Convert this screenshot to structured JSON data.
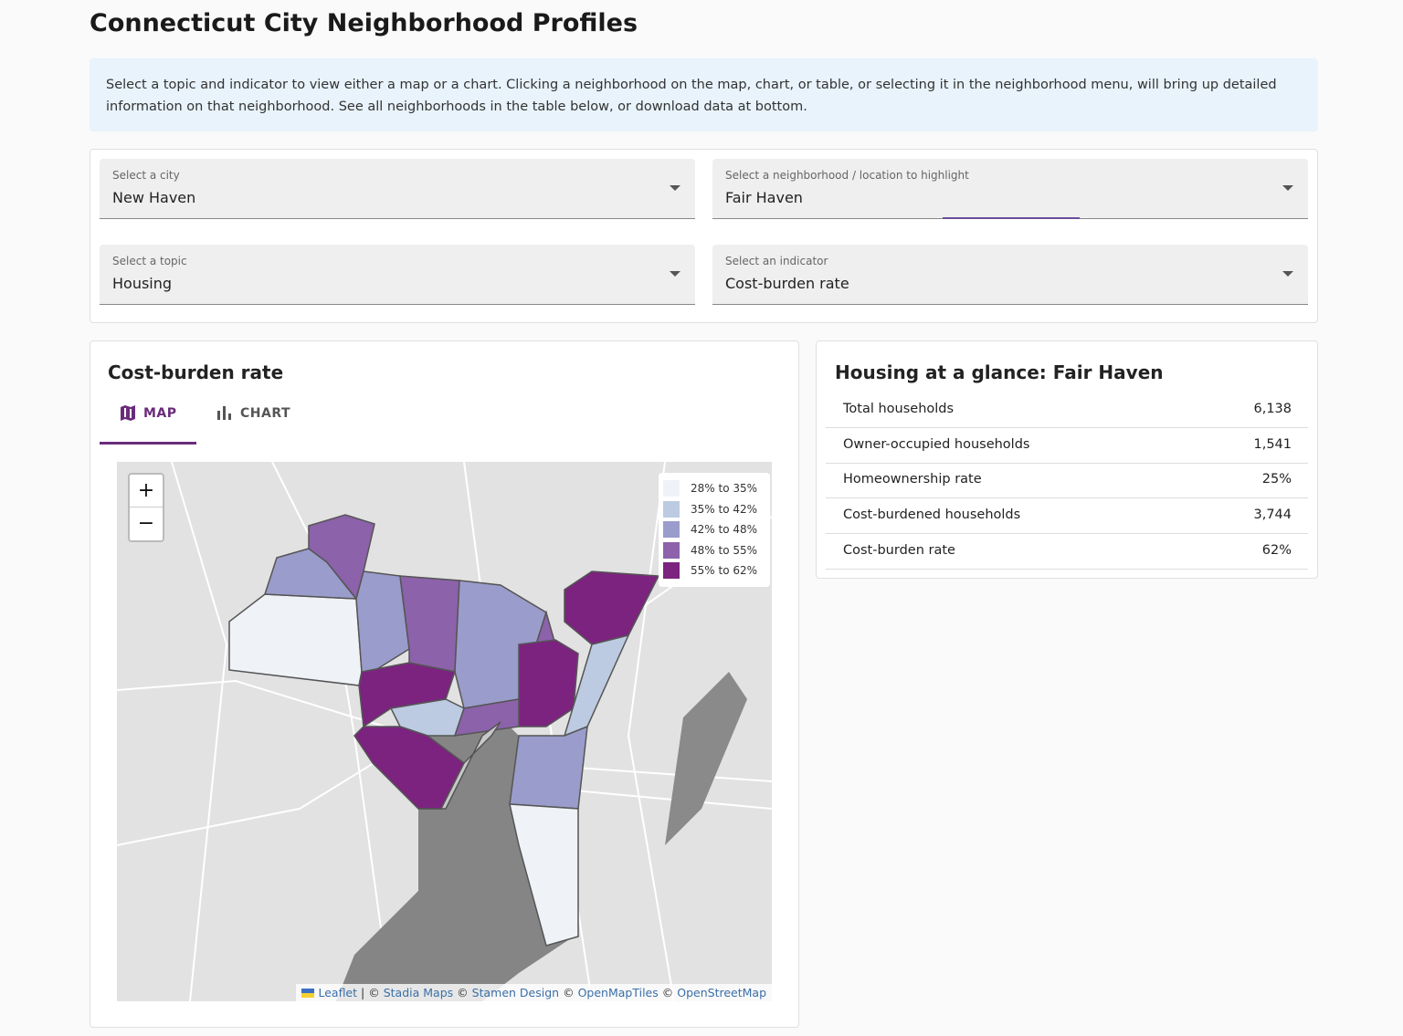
{
  "header": {
    "title": "Connecticut City Neighborhood Profiles"
  },
  "intro": "Select a topic and indicator to view either a map or a chart. Clicking a neighborhood on the map, chart, or table, or selecting it in the neighborhood menu, will bring up detailed information on that neighborhood. See all neighborhoods in the table below, or download data at bottom.",
  "controls": [
    {
      "label": "Select a city",
      "value": "New Haven"
    },
    {
      "label": "Select a neighborhood / location to highlight",
      "value": "Fair Haven"
    },
    {
      "label": "Select a topic",
      "value": "Housing"
    },
    {
      "label": "Select an indicator",
      "value": "Cost-burden rate"
    }
  ],
  "map_panel": {
    "title": "Cost-burden rate",
    "tabs": [
      "MAP",
      "CHART"
    ],
    "zoom": [
      "+",
      "−"
    ],
    "legend": [
      {
        "label": "28% to 35%",
        "color": "#eff3f8"
      },
      {
        "label": "35% to 42%",
        "color": "#bccbe2"
      },
      {
        "label": "42% to 48%",
        "color": "#9a9ccb"
      },
      {
        "label": "48% to 55%",
        "color": "#8c62aa"
      },
      {
        "label": "55% to 62%",
        "color": "#7b237f"
      }
    ],
    "attribution": [
      {
        "text": "Leaflet",
        "link": true
      },
      {
        "text": "| ©",
        "link": false
      },
      {
        "text": "Stadia Maps",
        "link": true
      },
      {
        "text": "©",
        "link": false
      },
      {
        "text": "Stamen Design",
        "link": true
      },
      {
        "text": "©",
        "link": false
      },
      {
        "text": "OpenMapTiles",
        "link": true
      },
      {
        "text": "©",
        "link": false
      },
      {
        "text": "OpenStreetMap",
        "link": true
      }
    ]
  },
  "glance": {
    "title": "Housing at a glance: Fair Haven",
    "rows": [
      [
        "Total households",
        "6,138"
      ],
      [
        "Owner-occupied households",
        "1,541"
      ],
      [
        "Homeownership rate",
        "25%"
      ],
      [
        "Cost-burdened households",
        "3,744"
      ],
      [
        "Cost-burden rate",
        "62%"
      ]
    ]
  }
}
